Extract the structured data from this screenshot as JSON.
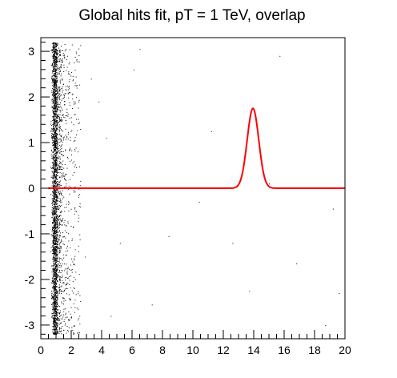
{
  "chart_data": {
    "type": "scatter",
    "title": "Global hits fit, pT = 1 TeV, overlap",
    "xlabel": "",
    "ylabel": "",
    "xlim": [
      0,
      20
    ],
    "ylim": [
      -3.3,
      3.3
    ],
    "grid": false,
    "x_ticks": [
      0,
      2,
      4,
      6,
      8,
      10,
      12,
      14,
      16,
      18,
      20
    ],
    "x_tick_labels": [
      "0",
      "2",
      "4",
      "6",
      "8",
      "10",
      "12",
      "14",
      "16",
      "18",
      "20"
    ],
    "y_ticks": [
      -3,
      -2,
      -1,
      0,
      1,
      2,
      3
    ],
    "y_tick_labels": [
      "-3",
      "-2",
      "-1",
      "0",
      "1",
      "2",
      "3"
    ],
    "series": [
      {
        "kind": "scatter",
        "color": "#000000",
        "description_values": {
          "dense_band_x_range": [
            0.5,
            1.2
          ],
          "sparse_tail_x_range": [
            1.2,
            2.6
          ],
          "y_range": [
            -3.2,
            3.2
          ],
          "isolated_points": [
            [
              6.5,
              3.05
            ],
            [
              3.8,
              1.9
            ],
            [
              4.3,
              1.1
            ],
            [
              5.2,
              -1.2
            ],
            [
              6.1,
              2.6
            ],
            [
              8.4,
              -1.05
            ],
            [
              7.3,
              -2.55
            ],
            [
              10.4,
              -0.3
            ],
            [
              11.2,
              1.25
            ],
            [
              12.6,
              -1.2
            ],
            [
              13.7,
              -2.25
            ],
            [
              15.0,
              0.1
            ],
            [
              15.7,
              2.9
            ],
            [
              16.8,
              -1.65
            ],
            [
              18.7,
              -3.0
            ],
            [
              19.2,
              -0.45
            ],
            [
              19.6,
              -2.3
            ],
            [
              4.6,
              -2.8
            ],
            [
              2.9,
              -1.5
            ],
            [
              3.3,
              2.4
            ]
          ]
        }
      },
      {
        "kind": "line",
        "color": "#ff0000",
        "peak_x": 13.95,
        "peak_y": 1.75,
        "sigma": 0.38,
        "baseline": 0.0,
        "x": [
          0.5,
          2,
          4,
          6,
          8,
          10,
          12,
          12.8,
          13.2,
          13.5,
          13.8,
          13.95,
          14.1,
          14.4,
          14.7,
          15.1,
          16,
          18,
          20
        ],
        "y": [
          0.0,
          0.0,
          0.0,
          0.0,
          0.0,
          0.0,
          0.01,
          0.14,
          0.55,
          1.1,
          1.6,
          1.75,
          1.62,
          1.1,
          0.5,
          0.07,
          0.0,
          0.0,
          0.0
        ]
      }
    ]
  }
}
